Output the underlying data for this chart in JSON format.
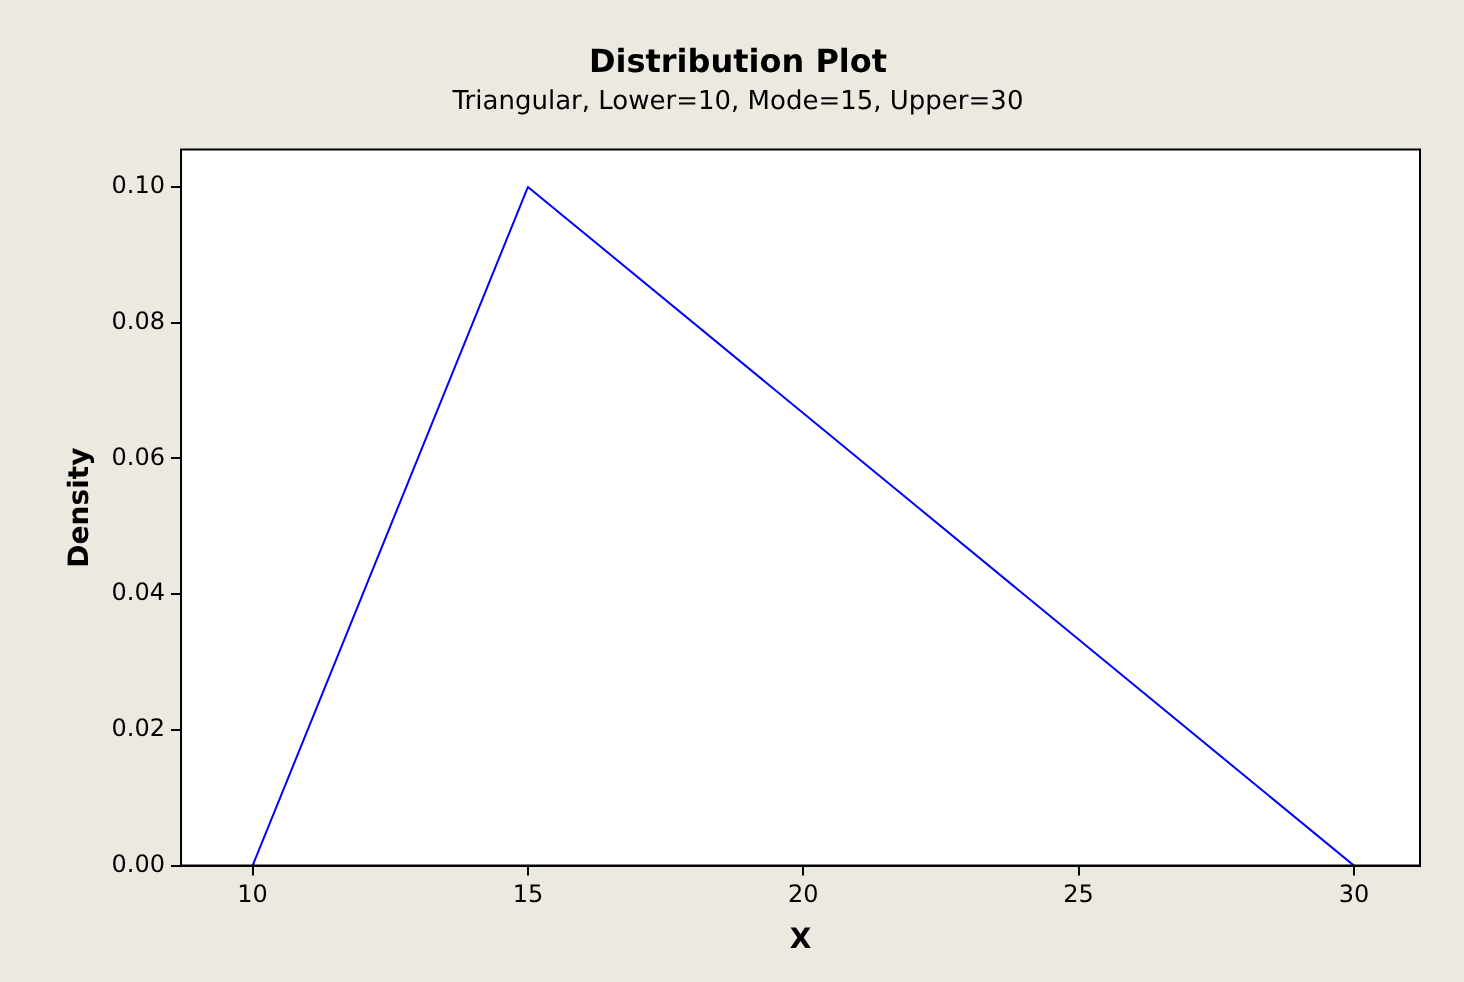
{
  "chart_data": {
    "type": "line",
    "title": "Distribution Plot",
    "subtitle": "Triangular, Lower=10, Mode=15, Upper=30",
    "xlabel": "X",
    "ylabel": "Density",
    "x": [
      10,
      15,
      30
    ],
    "series": [
      {
        "color": "#0000ff",
        "values": [
          0,
          0.1,
          0
        ]
      }
    ],
    "xlim": [
      8.7,
      31.2
    ],
    "xticks": [
      10,
      15,
      20,
      25,
      30
    ],
    "ylim": [
      0,
      0.1055
    ],
    "yticks": [
      {
        "value": 0,
        "label": "0.00"
      },
      {
        "value": 0.02,
        "label": "0.02"
      },
      {
        "value": 0.04,
        "label": "0.04"
      },
      {
        "value": 0.06,
        "label": "0.06"
      },
      {
        "value": 0.08,
        "label": "0.08"
      },
      {
        "value": 0.1,
        "label": "0.10"
      }
    ],
    "grid": false,
    "legend": false,
    "marker": "none",
    "line_style": "solid"
  }
}
